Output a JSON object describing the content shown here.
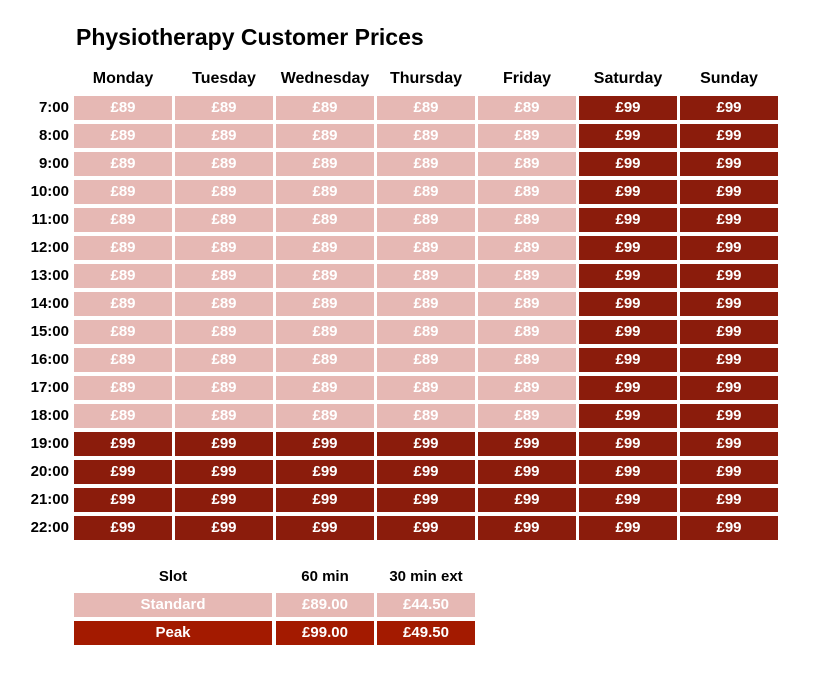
{
  "title": "Physiotherapy Customer Prices",
  "days": [
    "Monday",
    "Tuesday",
    "Wednesday",
    "Thursday",
    "Friday",
    "Saturday",
    "Sunday"
  ],
  "times": [
    "7:00",
    "8:00",
    "9:00",
    "10:00",
    "11:00",
    "12:00",
    "13:00",
    "14:00",
    "15:00",
    "16:00",
    "17:00",
    "18:00",
    "19:00",
    "20:00",
    "21:00",
    "22:00"
  ],
  "grid": [
    [
      "standard",
      "standard",
      "standard",
      "standard",
      "standard",
      "peak",
      "peak"
    ],
    [
      "standard",
      "standard",
      "standard",
      "standard",
      "standard",
      "peak",
      "peak"
    ],
    [
      "standard",
      "standard",
      "standard",
      "standard",
      "standard",
      "peak",
      "peak"
    ],
    [
      "standard",
      "standard",
      "standard",
      "standard",
      "standard",
      "peak",
      "peak"
    ],
    [
      "standard",
      "standard",
      "standard",
      "standard",
      "standard",
      "peak",
      "peak"
    ],
    [
      "standard",
      "standard",
      "standard",
      "standard",
      "standard",
      "peak",
      "peak"
    ],
    [
      "standard",
      "standard",
      "standard",
      "standard",
      "standard",
      "peak",
      "peak"
    ],
    [
      "standard",
      "standard",
      "standard",
      "standard",
      "standard",
      "peak",
      "peak"
    ],
    [
      "standard",
      "standard",
      "standard",
      "standard",
      "standard",
      "peak",
      "peak"
    ],
    [
      "standard",
      "standard",
      "standard",
      "standard",
      "standard",
      "peak",
      "peak"
    ],
    [
      "standard",
      "standard",
      "standard",
      "standard",
      "standard",
      "peak",
      "peak"
    ],
    [
      "standard",
      "standard",
      "standard",
      "standard",
      "standard",
      "peak",
      "peak"
    ],
    [
      "peak",
      "peak",
      "peak",
      "peak",
      "peak",
      "peak",
      "peak"
    ],
    [
      "peak",
      "peak",
      "peak",
      "peak",
      "peak",
      "peak",
      "peak"
    ],
    [
      "peak",
      "peak",
      "peak",
      "peak",
      "peak",
      "peak",
      "peak"
    ],
    [
      "peak",
      "peak",
      "peak",
      "peak",
      "peak",
      "peak",
      "peak"
    ]
  ],
  "prices": {
    "standard": "£89",
    "peak": "£99"
  },
  "legend": {
    "headers": [
      "Slot",
      "60 min",
      "30 min ext"
    ],
    "rows": [
      {
        "type": "standard",
        "slot": "Standard",
        "min60": "£89.00",
        "ext30": "£44.50"
      },
      {
        "type": "peak",
        "slot": "Peak",
        "min60": "£99.00",
        "ext30": "£49.50"
      }
    ]
  },
  "colors": {
    "standard": "#e6b8b4",
    "peak": "#8b1c0c",
    "legend_peak": "#a31a00"
  }
}
